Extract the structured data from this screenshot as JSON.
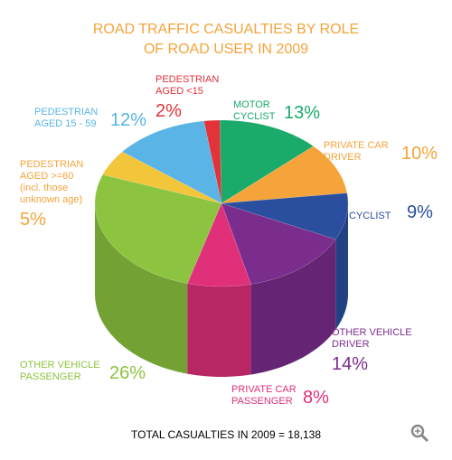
{
  "chart_data": {
    "type": "pie",
    "title": "ROAD TRAFFIC CASUALTIES BY ROLE OF ROAD USER IN 2009",
    "note": "TOTAL CASUALTIES IN 2009 = 18,138",
    "categories": [
      "PEDESTRIAN AGED <15",
      "MOTOR CYCLIST",
      "PRIVATE CAR DRIVER",
      "CYCLIST",
      "OTHER VEHICLE DRIVER",
      "PRIVATE CAR PASSENGER",
      "OTHER VEHICLE PASSENGER",
      "PEDESTRIAN AGED >=60 (incl. those unknown age)",
      "PEDESTRIAN AGED 15 - 59"
    ],
    "values": [
      2,
      13,
      10,
      9,
      14,
      8,
      26,
      5,
      12
    ],
    "value_labels": [
      "2%",
      "13%",
      "10%",
      "9%",
      "14%",
      "8%",
      "26%",
      "5%",
      "12%"
    ],
    "colors": [
      "#e2323a",
      "#1aaa6a",
      "#f4a43a",
      "#2a4f9e",
      "#7b2d8e",
      "#e0307a",
      "#8cc43f",
      "#f2c53a",
      "#5ab4e5"
    ]
  }
}
